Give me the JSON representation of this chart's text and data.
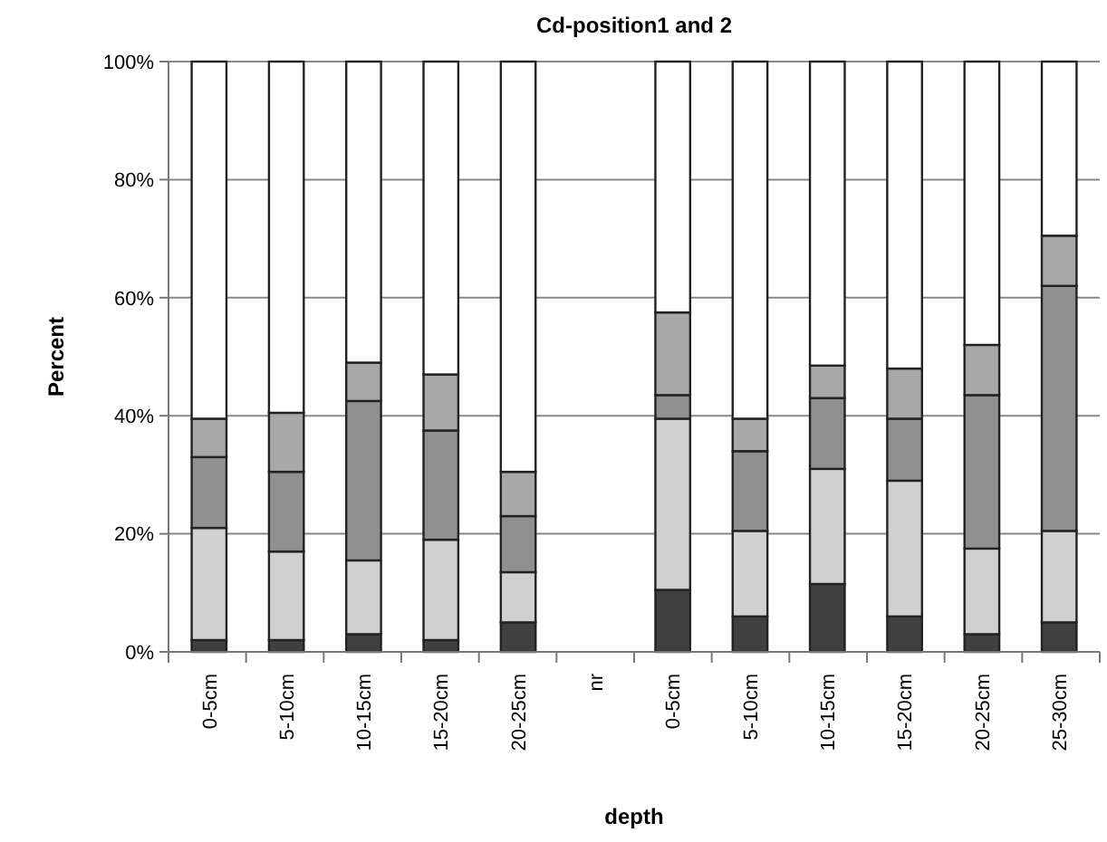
{
  "chart_data": {
    "type": "bar",
    "title": "Cd-position1 and 2",
    "xlabel": "depth",
    "ylabel": "Percent",
    "stacked": true,
    "grid": "y",
    "categories": [
      "0-5cm",
      "5-10cm",
      "10-15cm",
      "15-20cm",
      "20-25cm",
      "nr",
      "0-5cm",
      "5-10cm",
      "10-15cm",
      "15-20cm",
      "20-25cm",
      "25-30cm"
    ],
    "ylim": [
      0,
      100
    ],
    "yticks": [
      {
        "value": 0,
        "label": "0%"
      },
      {
        "value": 20,
        "label": "20%"
      },
      {
        "value": 40,
        "label": "40%"
      },
      {
        "value": 60,
        "label": "60%"
      },
      {
        "value": 80,
        "label": "80%"
      },
      {
        "value": 100,
        "label": "100%"
      }
    ],
    "series": [
      {
        "color": "#404040",
        "values": [
          2,
          2,
          3,
          2,
          5,
          null,
          10.5,
          6,
          11.5,
          6,
          3,
          5
        ]
      },
      {
        "color": "#d0d0d0",
        "values": [
          19,
          15,
          12.5,
          17,
          8.5,
          null,
          29,
          14.5,
          19.5,
          23,
          14.5,
          15.5
        ]
      },
      {
        "color": "#909090",
        "values": [
          12,
          13.5,
          27,
          18.5,
          9.5,
          null,
          4,
          13.5,
          12,
          10.5,
          26,
          41.5
        ]
      },
      {
        "color": "#a8a8a8",
        "values": [
          6.5,
          10,
          6.5,
          9.5,
          7.5,
          null,
          14,
          5.5,
          5.5,
          8.5,
          8.5,
          8.5
        ]
      },
      {
        "color": "#ffffff",
        "values": [
          60.5,
          59.5,
          51,
          53,
          69.5,
          null,
          42.5,
          60.5,
          51.5,
          52,
          48,
          29.5
        ]
      }
    ]
  }
}
